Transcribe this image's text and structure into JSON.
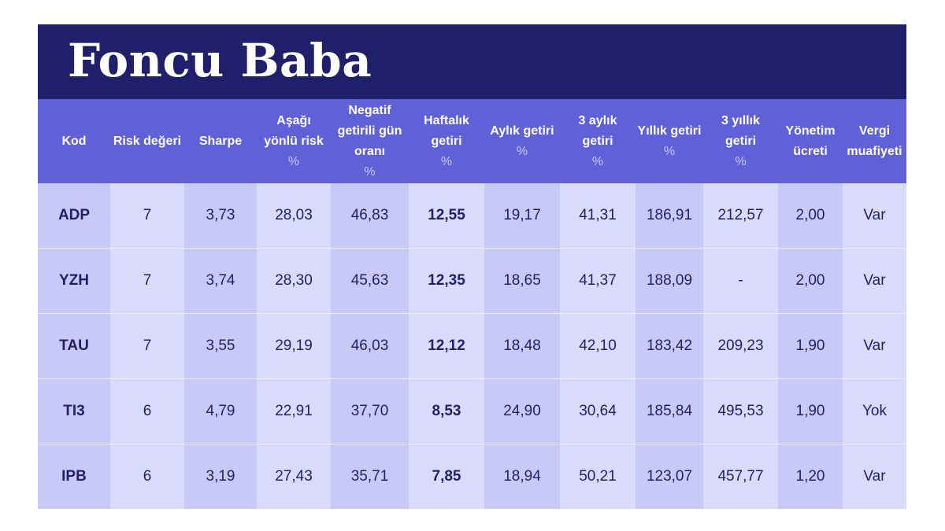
{
  "title": "Foncu Baba",
  "headers": [
    {
      "label": "Kod",
      "unit": ""
    },
    {
      "label": "Risk değeri",
      "unit": ""
    },
    {
      "label": "Sharpe",
      "unit": ""
    },
    {
      "label": "Aşağı yönlü risk",
      "unit": "%"
    },
    {
      "label": "Negatif getirili gün oranı",
      "unit": "%"
    },
    {
      "label": "Haftalık getiri",
      "unit": "%"
    },
    {
      "label": "Aylık getiri",
      "unit": "%"
    },
    {
      "label": "3 aylık getiri",
      "unit": "%"
    },
    {
      "label": "Yıllık getiri",
      "unit": "%"
    },
    {
      "label": "3 yıllık getiri",
      "unit": "%"
    },
    {
      "label": "Yönetim ücreti",
      "unit": ""
    },
    {
      "label": "Vergi muafiyeti",
      "unit": ""
    }
  ],
  "rows": [
    [
      "ADP",
      "7",
      "3,73",
      "28,03",
      "46,83",
      "12,55",
      "19,17",
      "41,31",
      "186,91",
      "212,57",
      "2,00",
      "Var"
    ],
    [
      "YZH",
      "7",
      "3,74",
      "28,30",
      "45,63",
      "12,35",
      "18,65",
      "41,37",
      "188,09",
      "-",
      "2,00",
      "Var"
    ],
    [
      "TAU",
      "7",
      "3,55",
      "29,19",
      "46,03",
      "12,12",
      "18,48",
      "42,10",
      "183,42",
      "209,23",
      "1,90",
      "Var"
    ],
    [
      "TI3",
      "6",
      "4,79",
      "22,91",
      "37,70",
      "8,53",
      "24,90",
      "30,64",
      "185,84",
      "495,53",
      "1,90",
      "Yok"
    ],
    [
      "IPB",
      "6",
      "3,19",
      "27,43",
      "35,71",
      "7,85",
      "18,94",
      "50,21",
      "123,07",
      "457,77",
      "1,20",
      "Var"
    ]
  ],
  "colors": {
    "title_bar": "#1f1f6b",
    "header_row": "#6060d8",
    "cell_light": "#dadafc",
    "cell_dark": "#c9c9f7",
    "text": "#1f1f6b"
  }
}
